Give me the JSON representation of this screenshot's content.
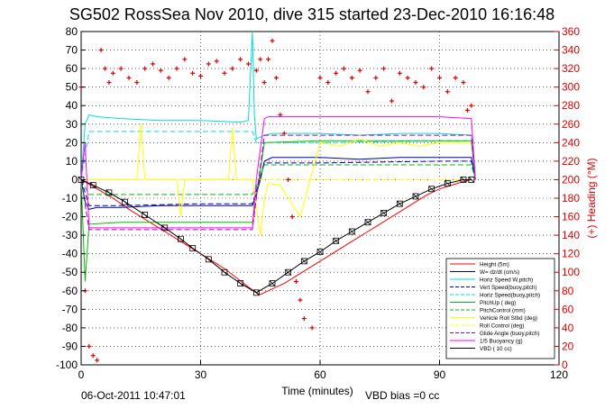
{
  "footer": {
    "timestamp": "06-Oct-2011 10:47:01",
    "vbd_bias": "VBD bias =0 cc"
  },
  "chart_data": {
    "type": "line",
    "title": "SG502 RossSea Nov 2010, dive 315 started 23-Dec-2010 16:16:48",
    "xlabel": "Time (minutes)",
    "ylabel": "",
    "y2label": "(+) Heading (°M)",
    "xlim": [
      0,
      120
    ],
    "ylim": [
      -100,
      80
    ],
    "y2lim": [
      0,
      360
    ],
    "xticks": [
      0,
      30,
      60,
      90,
      120
    ],
    "yticks": [
      -100,
      -90,
      -80,
      -70,
      -60,
      -50,
      -40,
      -30,
      -20,
      -10,
      0,
      10,
      20,
      30,
      40,
      50,
      60,
      70,
      80
    ],
    "y2ticks": [
      0,
      20,
      40,
      60,
      80,
      100,
      120,
      140,
      160,
      180,
      200,
      220,
      240,
      260,
      280,
      300,
      320,
      340,
      360
    ],
    "grid": true,
    "legend_position": "lower-right",
    "series": [
      {
        "name": "Height (5m)",
        "color": "#ff0000",
        "style": "solid",
        "x": [
          0,
          2,
          4,
          6,
          8,
          10,
          12,
          15,
          18,
          21,
          24,
          27,
          30,
          33,
          36,
          39,
          42,
          44,
          45,
          46,
          48,
          51,
          54,
          57,
          60,
          63,
          66,
          69,
          72,
          75,
          78,
          81,
          84,
          87,
          90,
          93,
          96,
          98
        ],
        "y": [
          0,
          -2.5,
          -5,
          -7.5,
          -10,
          -13,
          -16,
          -20,
          -24,
          -28,
          -32,
          -36,
          -40,
          -44,
          -48,
          -53,
          -58,
          -61,
          -62,
          -61,
          -59,
          -56,
          -52,
          -48,
          -44,
          -40,
          -36,
          -32,
          -28,
          -24,
          -20,
          -16,
          -12,
          -8,
          -5,
          -3,
          -1,
          0
        ]
      },
      {
        "name": "W= dz/dt (cm/s)",
        "color": "#0000aa",
        "style": "solid",
        "x": [
          0,
          1,
          2,
          4,
          10,
          20,
          30,
          40,
          43,
          44,
          45,
          46,
          48,
          60,
          70,
          80,
          90,
          98,
          99
        ],
        "y": [
          0,
          -12,
          -16,
          -15,
          -15,
          -14,
          -14,
          -14,
          -14,
          -8,
          0,
          10,
          12,
          12,
          11,
          12,
          12,
          12,
          0
        ]
      },
      {
        "name": "Horiz Speed W,pitch)",
        "color": "#00dddd",
        "style": "solid",
        "x": [
          0,
          1,
          2,
          4,
          10,
          20,
          30,
          40,
          42,
          43,
          43.5,
          44,
          46,
          48,
          60,
          70,
          80,
          90,
          98,
          99
        ],
        "y": [
          0,
          30,
          35,
          34,
          33,
          32,
          32,
          31,
          32,
          80,
          35,
          22,
          24,
          25,
          25,
          24,
          25,
          25,
          24,
          0
        ]
      },
      {
        "name": "Vert Speed(buoy,pitch)",
        "color": "#0000aa",
        "style": "dashed",
        "x": [
          0,
          2,
          10,
          30,
          43,
          44,
          46,
          60,
          90,
          98,
          99
        ],
        "y": [
          0,
          -14,
          -14,
          -13,
          -13,
          -6,
          9,
          9,
          10,
          10,
          0
        ]
      },
      {
        "name": "Horiz Speed(buoy,pitch)",
        "color": "#00dddd",
        "style": "dashed",
        "x": [
          0,
          2,
          10,
          30,
          43,
          44,
          46,
          60,
          90,
          98,
          99
        ],
        "y": [
          0,
          26,
          26,
          26,
          26,
          20,
          20,
          20,
          21,
          21,
          0
        ]
      },
      {
        "name": "PitchUp ( deg)",
        "color": "#00bb00",
        "style": "solid",
        "x": [
          0,
          1,
          2,
          10,
          20,
          30,
          43,
          44,
          46,
          60,
          70,
          90,
          98,
          99
        ],
        "y": [
          0,
          -55,
          -24,
          -23,
          -23,
          -23,
          -23,
          -10,
          20,
          21,
          21,
          21,
          21,
          0
        ]
      },
      {
        "name": "PitchControl  (mm)",
        "color": "#00bb00",
        "style": "dashed",
        "x": [
          0,
          2,
          10,
          43,
          44,
          46,
          90,
          98,
          99
        ],
        "y": [
          0,
          -8,
          -8,
          -8,
          -4,
          8,
          8,
          8,
          0
        ]
      },
      {
        "name": "Vehicle Roll Stbd (deg)",
        "color": "#ffff00",
        "style": "solid",
        "x": [
          0,
          5,
          10,
          14,
          15,
          16,
          20,
          24,
          25,
          26,
          30,
          37,
          38,
          39,
          43,
          45,
          46,
          47,
          50,
          55,
          60,
          65,
          70,
          75,
          80,
          85,
          90,
          95,
          98
        ],
        "y": [
          0,
          0,
          0,
          0,
          30,
          0,
          0,
          0,
          -20,
          0,
          0,
          0,
          28,
          0,
          0,
          -30,
          -10,
          -2,
          -3,
          -20,
          20,
          18,
          22,
          18,
          20,
          18,
          20,
          20,
          20
        ]
      },
      {
        "name": "Roll Control (deg)",
        "color": "#ffff00",
        "style": "dashed",
        "x": [
          0,
          10,
          43,
          46,
          60,
          90,
          98
        ],
        "y": [
          0,
          0,
          0,
          0,
          0,
          0,
          0
        ]
      },
      {
        "name": "Glide Angle (buoy,pitch)",
        "color": "#aa00aa",
        "style": "dashed",
        "x": [
          0,
          2,
          10,
          30,
          43,
          44,
          46,
          60,
          90,
          98,
          99
        ],
        "y": [
          0,
          -27,
          -27,
          -27,
          -27,
          -10,
          24,
          24,
          24,
          24,
          0
        ]
      },
      {
        "name": "1/5 Buoyancy (g)",
        "color": "#ff00ff",
        "style": "solid",
        "x": [
          0,
          1,
          2,
          10,
          20,
          30,
          43,
          44,
          46,
          47,
          60,
          90,
          98,
          99
        ],
        "y": [
          0,
          20,
          -26,
          -26,
          -26,
          -26,
          -26,
          0,
          33,
          34,
          34,
          34,
          33,
          0
        ]
      },
      {
        "name": "VBD ( 10 cc)",
        "color": "#000000",
        "style": "solid-marker",
        "x": [
          0,
          3,
          7,
          11,
          16,
          21,
          25,
          28,
          32,
          36,
          40,
          44,
          48,
          52,
          56,
          60,
          64,
          68,
          72,
          76,
          80,
          84,
          88,
          92,
          96,
          98
        ],
        "y": [
          0,
          -3,
          -7,
          -12,
          -19,
          -26,
          -32,
          -37,
          -43,
          -50,
          -56,
          -61,
          -56,
          -50,
          -44,
          -39,
          -33,
          -28,
          -23,
          -18,
          -13,
          -9,
          -5,
          -2,
          0,
          0
        ]
      }
    ],
    "heading_series": {
      "name": "Heading",
      "axis": "right",
      "color": "#dd0000",
      "marker": "+",
      "x": [
        0,
        1,
        2,
        3,
        4,
        5,
        6,
        7,
        8,
        10,
        12,
        14,
        16,
        18,
        20,
        22,
        24,
        26,
        28,
        30,
        32,
        34,
        36,
        38,
        40,
        42,
        44,
        45,
        46,
        47,
        48,
        49,
        50,
        51,
        52,
        53,
        54,
        55,
        56,
        58,
        60,
        62,
        64,
        66,
        68,
        70,
        72,
        74,
        76,
        78,
        80,
        82,
        84,
        86,
        88,
        90,
        92,
        94,
        96,
        97,
        98
      ],
      "y": [
        300,
        80,
        20,
        10,
        5,
        340,
        320,
        305,
        315,
        320,
        310,
        305,
        320,
        325,
        318,
        310,
        320,
        330,
        315,
        312,
        325,
        328,
        315,
        320,
        330,
        325,
        318,
        330,
        305,
        330,
        350,
        310,
        270,
        250,
        200,
        160,
        90,
        70,
        50,
        40,
        310,
        305,
        315,
        320,
        310,
        318,
        295,
        310,
        320,
        285,
        315,
        310,
        305,
        300,
        320,
        310,
        295,
        310,
        305,
        275,
        280
      ]
    }
  }
}
